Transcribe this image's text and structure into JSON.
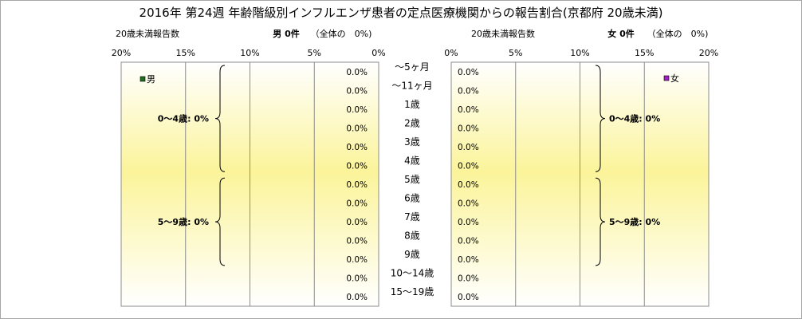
{
  "title": "2016年 第24週 年齢階級別インフルエンザ患者の定点医療機関からの報告割合(京都府 20歳未満)",
  "male_panel": {
    "count_label": "20歳未満報告数",
    "summary": "男 0件",
    "share": "（全体の　0%)",
    "legend": "男",
    "legend_color": "#1e6e1e"
  },
  "female_panel": {
    "count_label": "20歳未満報告数",
    "summary": "女 0件",
    "share": "（全体の　0%)",
    "legend": "女",
    "legend_color": "#a020c0"
  },
  "chart_data": {
    "type": "bar",
    "orientation": "horizontal",
    "layout": "population-pyramid",
    "categories": [
      "～5ヶ月",
      "～11ヶ月",
      "1歳",
      "2歳",
      "3歳",
      "4歳",
      "5歳",
      "6歳",
      "7歳",
      "8歳",
      "9歳",
      "10～14歳",
      "15～19歳"
    ],
    "series": [
      {
        "name": "男",
        "values": [
          0,
          0,
          0,
          0,
          0,
          0,
          0,
          0,
          0,
          0,
          0,
          0,
          0
        ],
        "labels": [
          "0.0%",
          "0.0%",
          "0.0%",
          "0.0%",
          "0.0%",
          "0.0%",
          "0.0%",
          "0.0%",
          "0.0%",
          "0.0%",
          "0.0%",
          "0.0%",
          "0.0%"
        ]
      },
      {
        "name": "女",
        "values": [
          0,
          0,
          0,
          0,
          0,
          0,
          0,
          0,
          0,
          0,
          0,
          0,
          0
        ],
        "labels": [
          "0.0%",
          "0.0%",
          "0.0%",
          "0.0%",
          "0.0%",
          "0.0%",
          "0.0%",
          "0.0%",
          "0.0%",
          "0.0%",
          "0.0%",
          "0.0%",
          "0.0%"
        ]
      }
    ],
    "male_ticks": [
      "20%",
      "15%",
      "10%",
      "5%",
      "0%"
    ],
    "female_ticks": [
      "0%",
      "5%",
      "10%",
      "15%",
      "20%"
    ],
    "xlim": [
      0,
      20
    ],
    "grid": true,
    "groups": [
      {
        "label": "0～4歳: 0%",
        "from": 0,
        "to": 5
      },
      {
        "label": "5～9歳: 0%",
        "from": 6,
        "to": 10
      }
    ]
  }
}
